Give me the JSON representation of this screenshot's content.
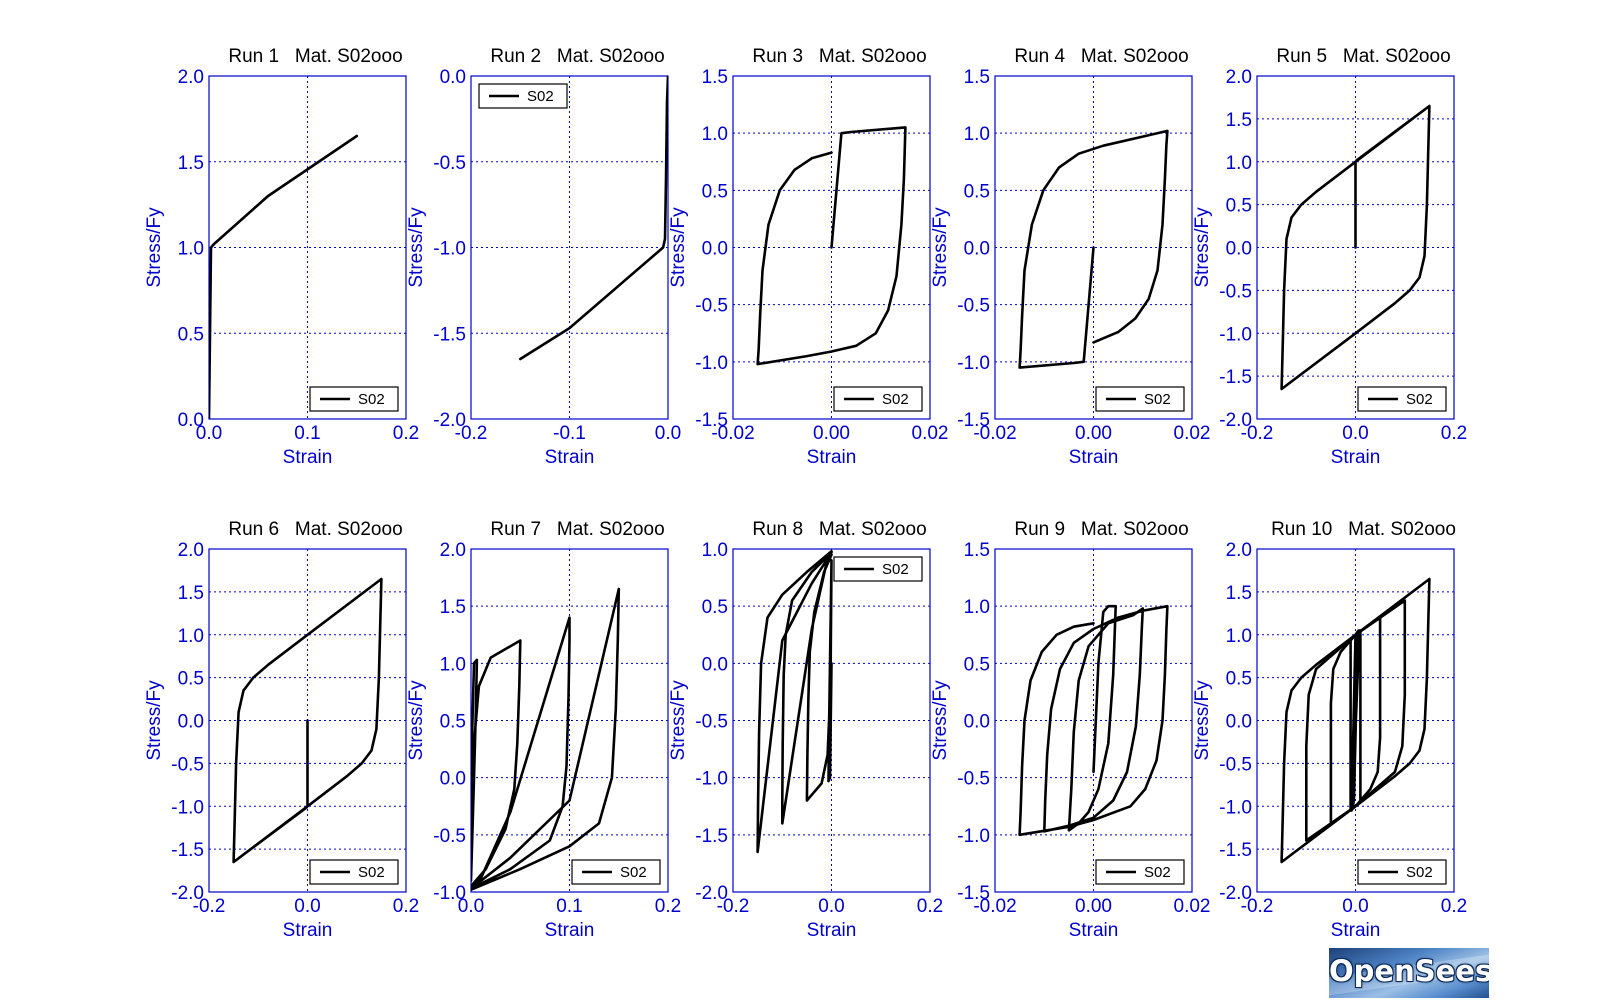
{
  "logo": {
    "text": "OpenSees"
  },
  "chart_data": [
    {
      "type": "line",
      "title": "Run 1   Mat. S02ooo",
      "xlabel": "Strain",
      "ylabel": "Stress/Fy",
      "xlim": [
        0.0,
        0.2
      ],
      "ylim": [
        0.0,
        2.0
      ],
      "xticks": [
        0.0,
        0.1,
        0.2
      ],
      "yticks": [
        0.0,
        0.5,
        1.0,
        1.5,
        2.0
      ],
      "xdec": 1,
      "ydec": 1,
      "legend": "bottom-right",
      "series": [
        {
          "name": "S02",
          "x": [
            0,
            0.002,
            0.005,
            0.06,
            0.15
          ],
          "y": [
            0,
            1.0,
            1.02,
            1.3,
            1.65
          ]
        }
      ]
    },
    {
      "type": "line",
      "title": "Run 2   Mat. S02ooo",
      "xlabel": "Strain",
      "ylabel": "Stress/Fy",
      "xlim": [
        -0.2,
        0.0
      ],
      "ylim": [
        -2.0,
        0.0
      ],
      "xticks": [
        -0.2,
        -0.1,
        0.0
      ],
      "yticks": [
        -2.0,
        -1.5,
        -1.0,
        -0.5,
        0.0
      ],
      "xdec": 1,
      "ydec": 1,
      "legend": "top-left",
      "series": [
        {
          "name": "S02",
          "x": [
            0,
            -0.001,
            -0.002,
            -0.003,
            -0.005,
            -0.1,
            -0.15
          ],
          "y": [
            0,
            -0.15,
            -0.6,
            -0.95,
            -1.0,
            -1.47,
            -1.65
          ]
        }
      ]
    },
    {
      "type": "line",
      "title": "Run 3   Mat. S02ooo",
      "xlabel": "Strain",
      "ylabel": "Stress/Fy",
      "xlim": [
        -0.02,
        0.02
      ],
      "ylim": [
        -1.5,
        1.5
      ],
      "xticks": [
        -0.02,
        0.0,
        0.02
      ],
      "yticks": [
        -1.5,
        -1.0,
        -0.5,
        0.0,
        0.5,
        1.0,
        1.5
      ],
      "xdec": 2,
      "ydec": 1,
      "legend": "bottom-right",
      "series": [
        {
          "name": "S02",
          "x": [
            0,
            0.002,
            0.004,
            0.015,
            0.0149,
            0.0147,
            0.0142,
            0.0132,
            0.0115,
            0.009,
            0.005,
            0,
            -0.005,
            -0.015,
            -0.0148,
            -0.0145,
            -0.014,
            -0.0128,
            -0.0105,
            -0.0075,
            -0.004,
            0
          ],
          "y": [
            0,
            1.0,
            1.01,
            1.05,
            0.9,
            0.6,
            0.2,
            -0.25,
            -0.55,
            -0.75,
            -0.86,
            -0.91,
            -0.95,
            -1.02,
            -0.9,
            -0.6,
            -0.2,
            0.2,
            0.5,
            0.68,
            0.78,
            0.83
          ]
        }
      ]
    },
    {
      "type": "line",
      "title": "Run 4   Mat. S02ooo",
      "xlabel": "Strain",
      "ylabel": "Stress/Fy",
      "xlim": [
        -0.02,
        0.02
      ],
      "ylim": [
        -1.5,
        1.5
      ],
      "xticks": [
        -0.02,
        0.0,
        0.02
      ],
      "yticks": [
        -1.5,
        -1.0,
        -0.5,
        0.0,
        0.5,
        1.0,
        1.5
      ],
      "xdec": 2,
      "ydec": 1,
      "legend": "bottom-right",
      "series": [
        {
          "name": "S02",
          "x": [
            0,
            -0.002,
            -0.004,
            -0.015,
            -0.0148,
            -0.0145,
            -0.014,
            -0.0125,
            -0.0102,
            -0.007,
            -0.003,
            0.002,
            0.008,
            0.015,
            0.0148,
            0.0145,
            0.014,
            0.013,
            0.0112,
            0.0085,
            0.005,
            0
          ],
          "y": [
            0,
            -1.0,
            -1.01,
            -1.05,
            -0.9,
            -0.6,
            -0.2,
            0.2,
            0.5,
            0.7,
            0.82,
            0.89,
            0.95,
            1.02,
            0.9,
            0.6,
            0.2,
            -0.2,
            -0.45,
            -0.62,
            -0.74,
            -0.83
          ]
        }
      ]
    },
    {
      "type": "line",
      "title": "Run 5   Mat. S02ooo",
      "xlabel": "Strain",
      "ylabel": "Stress/Fy",
      "xlim": [
        -0.2,
        0.2
      ],
      "ylim": [
        -2.0,
        2.0
      ],
      "xticks": [
        -0.2,
        0.0,
        0.2
      ],
      "yticks": [
        -2.0,
        -1.5,
        -1.0,
        -0.5,
        0.0,
        0.5,
        1.0,
        1.5,
        2.0
      ],
      "xdec": 1,
      "ydec": 1,
      "legend": "bottom-right",
      "series": [
        {
          "name": "S02",
          "x": [
            0,
            0.0,
            0.003,
            0.15,
            0.148,
            0.145,
            0.14,
            0.13,
            0.11,
            0.08,
            0.0,
            -0.15,
            -0.148,
            -0.145,
            -0.14,
            -0.13,
            -0.11,
            -0.08,
            0.0,
            0.15
          ],
          "y": [
            0,
            1.0,
            1.02,
            1.65,
            1.2,
            0.5,
            -0.1,
            -0.35,
            -0.5,
            -0.65,
            -1.0,
            -1.65,
            -1.2,
            -0.5,
            0.1,
            0.35,
            0.5,
            0.65,
            1.0,
            1.65
          ]
        }
      ]
    },
    {
      "type": "line",
      "title": "Run 6   Mat. S02ooo",
      "xlabel": "Strain",
      "ylabel": "Stress/Fy",
      "xlim": [
        -0.2,
        0.2
      ],
      "ylim": [
        -2.0,
        2.0
      ],
      "xticks": [
        -0.2,
        0.0,
        0.2
      ],
      "yticks": [
        -2.0,
        -1.5,
        -1.0,
        -0.5,
        0.0,
        0.5,
        1.0,
        1.5,
        2.0
      ],
      "xdec": 1,
      "ydec": 1,
      "legend": "bottom-right",
      "series": [
        {
          "name": "S02",
          "x": [
            0,
            0.0,
            -0.003,
            -0.15,
            -0.148,
            -0.145,
            -0.14,
            -0.13,
            -0.11,
            -0.08,
            0.0,
            0.15,
            0.148,
            0.145,
            0.14,
            0.13,
            0.11,
            0.08,
            0.0,
            -0.15
          ],
          "y": [
            0,
            -1.0,
            -1.02,
            -1.65,
            -1.2,
            -0.5,
            0.1,
            0.35,
            0.5,
            0.65,
            1.0,
            1.65,
            1.2,
            0.5,
            -0.1,
            -0.35,
            -0.5,
            -0.65,
            -1.0,
            -1.65
          ]
        }
      ]
    },
    {
      "type": "line",
      "title": "Run 7   Mat. S02ooo",
      "xlabel": "Strain",
      "ylabel": "Stress/Fy",
      "xlim": [
        0.0,
        0.2
      ],
      "ylim": [
        -1.0,
        2.0
      ],
      "xticks": [
        0.0,
        0.1,
        0.2
      ],
      "yticks": [
        -1.0,
        -0.5,
        0.0,
        0.5,
        1.0,
        1.5,
        2.0
      ],
      "xdec": 1,
      "ydec": 1,
      "legend": "bottom-right",
      "series": [
        {
          "name": "S02",
          "x": [
            0,
            0.003,
            0.005,
            0.006,
            0.005,
            0.003,
            0.001,
            0.0,
            0.002,
            0.008,
            0.02,
            0.04,
            0.05,
            0.049,
            0.047,
            0.044,
            0.035,
            0.015,
            0.0,
            0.01,
            0.04,
            0.1,
            0.1,
            0.099,
            0.097,
            0.093,
            0.08,
            0.04,
            0.0,
            0.04,
            0.1,
            0.15,
            0.149,
            0.147,
            0.143,
            0.13,
            0.1,
            0.05,
            0.0
          ],
          "y": [
            0,
            1.0,
            1.02,
            1.03,
            0.6,
            0.0,
            -0.6,
            -0.9,
            0.2,
            0.8,
            1.05,
            1.15,
            1.2,
            0.8,
            0.3,
            -0.1,
            -0.45,
            -0.8,
            -0.95,
            -0.88,
            -0.3,
            1.4,
            1.2,
            0.7,
            0.1,
            -0.25,
            -0.55,
            -0.8,
            -0.97,
            -0.7,
            -0.2,
            1.65,
            1.2,
            0.6,
            0.0,
            -0.4,
            -0.6,
            -0.8,
            -0.98
          ]
        }
      ]
    },
    {
      "type": "line",
      "title": "Run 8   Mat. S02ooo",
      "xlabel": "Strain",
      "ylabel": "Stress/Fy",
      "xlim": [
        -0.2,
        0.2
      ],
      "ylim": [
        -2.0,
        1.0
      ],
      "xticks": [
        -0.2,
        0.0,
        0.2
      ],
      "yticks": [
        -2.0,
        -1.5,
        -1.0,
        -0.5,
        0.0,
        0.5,
        1.0
      ],
      "xdec": 1,
      "ydec": 1,
      "legend": "top-right",
      "series": [
        {
          "name": "S02",
          "x": [
            0,
            -0.003,
            -0.005,
            -0.006,
            -0.005,
            -0.003,
            -0.001,
            0.0,
            -0.002,
            -0.008,
            -0.02,
            -0.04,
            -0.05,
            -0.049,
            -0.047,
            -0.044,
            -0.035,
            -0.015,
            0.0,
            -0.01,
            -0.04,
            -0.1,
            -0.1,
            -0.099,
            -0.097,
            -0.093,
            -0.08,
            -0.04,
            0.0,
            -0.04,
            -0.1,
            -0.15,
            -0.149,
            -0.147,
            -0.143,
            -0.13,
            -0.1,
            -0.05,
            0.0
          ],
          "y": [
            0,
            -1.0,
            -1.02,
            -1.03,
            -0.6,
            0.0,
            0.6,
            0.9,
            -0.2,
            -0.8,
            -1.05,
            -1.15,
            -1.2,
            -0.8,
            -0.3,
            0.1,
            0.45,
            0.8,
            0.95,
            0.88,
            0.3,
            -1.4,
            -1.2,
            -0.7,
            -0.1,
            0.25,
            0.55,
            0.8,
            0.97,
            0.7,
            0.2,
            -1.65,
            -1.2,
            -0.6,
            0.0,
            0.4,
            0.6,
            0.8,
            0.98
          ]
        }
      ]
    },
    {
      "type": "line",
      "title": "Run 9   Mat. S02ooo",
      "xlabel": "Strain",
      "ylabel": "Stress/Fy",
      "xlim": [
        -0.02,
        0.02
      ],
      "ylim": [
        -1.5,
        1.5
      ],
      "xticks": [
        -0.02,
        0.0,
        0.02
      ],
      "yticks": [
        -1.5,
        -1.0,
        -0.5,
        0.0,
        0.5,
        1.0,
        1.5
      ],
      "xdec": 2,
      "ydec": 1,
      "legend": "bottom-right",
      "series": [
        {
          "name": "S02",
          "x": [
            0,
            0.001,
            0.002,
            0.003,
            0.004,
            0.0045,
            0.004,
            0.003,
            0.001,
            -0.001,
            -0.003,
            -0.005,
            -0.0045,
            -0.004,
            -0.003,
            -0.001,
            0.003,
            0.008,
            0.01,
            0.0098,
            0.0094,
            0.0086,
            0.0068,
            0.004,
            0.0,
            -0.005,
            -0.01,
            -0.0098,
            -0.0094,
            -0.0086,
            -0.0068,
            -0.004,
            0.0,
            0.005,
            0.01,
            0.015,
            0.0148,
            0.0145,
            0.014,
            0.0128,
            0.0105,
            0.0075,
            0.0,
            -0.005,
            -0.015,
            -0.0148,
            -0.0145,
            -0.014,
            -0.0128,
            -0.0105,
            -0.0075,
            -0.004,
            0.0
          ],
          "y": [
            -0.45,
            0.5,
            0.95,
            1.0,
            1.0,
            1.0,
            0.4,
            -0.2,
            -0.6,
            -0.8,
            -0.9,
            -0.96,
            -0.6,
            -0.1,
            0.35,
            0.65,
            0.85,
            0.92,
            0.98,
            0.8,
            0.4,
            -0.05,
            -0.45,
            -0.7,
            -0.85,
            -0.92,
            -0.97,
            -0.7,
            -0.3,
            0.1,
            0.45,
            0.68,
            0.8,
            0.9,
            0.96,
            1.0,
            0.8,
            0.4,
            0.0,
            -0.35,
            -0.6,
            -0.75,
            -0.87,
            -0.93,
            -1.0,
            -0.8,
            -0.4,
            0.0,
            0.35,
            0.6,
            0.75,
            0.82,
            0.85
          ]
        }
      ]
    },
    {
      "type": "line",
      "title": "Run 10   Mat. S02ooo",
      "xlabel": "Strain",
      "ylabel": "Stress/Fy",
      "xlim": [
        -0.2,
        0.2
      ],
      "ylim": [
        -2.0,
        2.0
      ],
      "xticks": [
        -0.2,
        0.0,
        0.2
      ],
      "yticks": [
        -2.0,
        -1.5,
        -1.0,
        -0.5,
        0.0,
        0.5,
        1.0,
        1.5,
        2.0
      ],
      "xdec": 1,
      "ydec": 1,
      "legend": "bottom-right",
      "series": [
        {
          "name": "S02",
          "x": [
            0,
            0.003,
            0.005,
            -0.003,
            -0.005,
            0.0,
            0.006,
            0.008,
            -0.006,
            -0.008,
            0.0,
            0.01,
            0.01,
            0.0,
            -0.01,
            -0.01,
            0.0,
            0.05,
            0.05,
            0.045,
            0.03,
            0.0,
            -0.05,
            -0.05,
            -0.045,
            -0.03,
            0.0,
            0.1,
            0.1,
            0.095,
            0.08,
            0.04,
            0.0,
            -0.1,
            -0.1,
            -0.095,
            -0.08,
            -0.04,
            0.0,
            0.15,
            0.148,
            0.145,
            0.14,
            0.13,
            0.11,
            0.08,
            0.0,
            -0.15,
            -0.148,
            -0.145,
            -0.14,
            -0.13,
            -0.11,
            -0.08,
            0.0
          ],
          "y": [
            0,
            1.0,
            1.02,
            -0.9,
            -1.02,
            1.0,
            1.05,
            1.05,
            -1.0,
            -1.05,
            1.0,
            1.05,
            -0.95,
            -1.0,
            -1.05,
            0.95,
            1.0,
            1.2,
            -0.2,
            -0.6,
            -0.8,
            -1.0,
            -1.2,
            0.2,
            0.6,
            0.8,
            1.0,
            1.4,
            0.3,
            -0.3,
            -0.6,
            -0.8,
            -1.0,
            -1.4,
            -0.3,
            0.3,
            0.6,
            0.8,
            1.0,
            1.65,
            1.2,
            0.5,
            -0.1,
            -0.35,
            -0.5,
            -0.65,
            -1.0,
            -1.65,
            -1.2,
            -0.5,
            0.1,
            0.35,
            0.5,
            0.65,
            1.0
          ]
        }
      ]
    }
  ]
}
